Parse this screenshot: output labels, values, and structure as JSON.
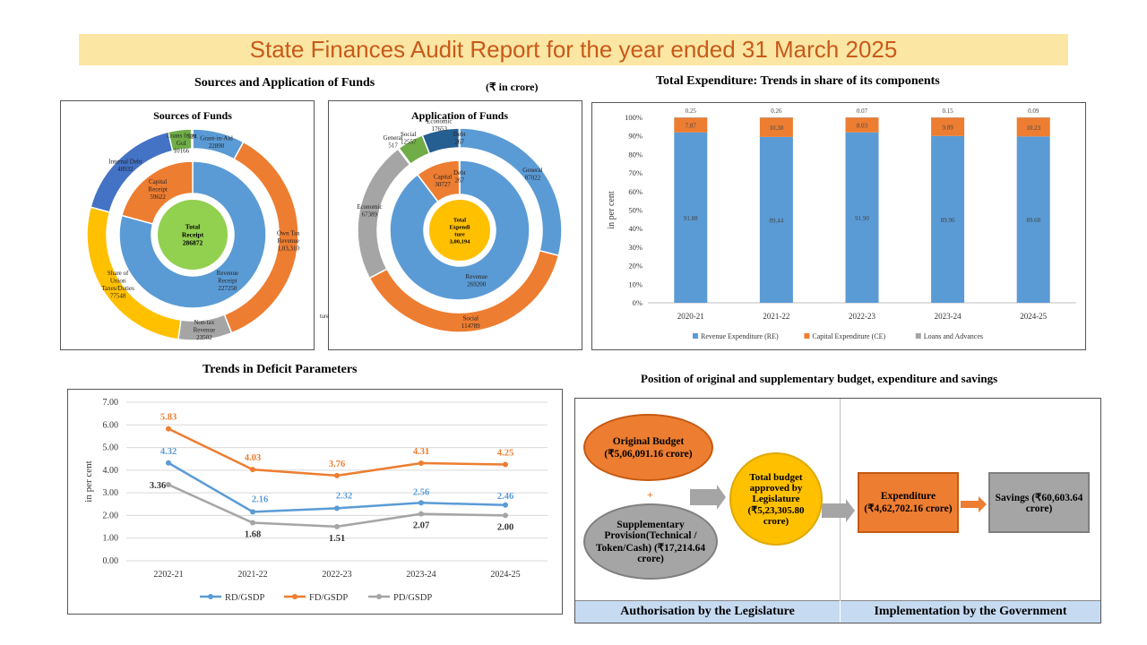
{
  "page_title": "State Finances Audit Report for the year ended 31 March 2025",
  "sources_application": {
    "title": "Sources and Application of Funds",
    "unit": "(₹ in crore)",
    "stray_label": "ture"
  },
  "colors": {
    "blue": "#5b9bd5",
    "orange": "#ed7d31",
    "gray": "#a5a5a5",
    "yellow": "#ffc000",
    "dark_blue": "#4472c4",
    "green": "#70ad47",
    "navy": "#255e91",
    "light_green": "#92d050",
    "title_bg": "#fbe6a3"
  },
  "chart_data": [
    {
      "id": "sources",
      "type": "pie",
      "title": "Sources of Funds",
      "center_label": [
        "Total",
        "Receipt",
        "286872"
      ],
      "inner_ring": [
        {
          "label": [
            "Revenue",
            "Receipt",
            "227250"
          ],
          "value": 227250,
          "color": "#5b9bd5"
        },
        {
          "label": [
            "Capital",
            "Receipt",
            "59622"
          ],
          "value": 59622,
          "color": "#ed7d31"
        }
      ],
      "outer_ring": [
        {
          "label": [
            "Grant-in-Aid",
            "22890"
          ],
          "value": 22890,
          "color": "#5b9bd5"
        },
        {
          "label": [
            "Own Tax",
            "Revenue",
            "1,03,310"
          ],
          "value": 103310,
          "color": "#ed7d31"
        },
        {
          "label": [
            "Non-tax",
            "Revenue",
            "23502"
          ],
          "value": 23502,
          "color": "#a5a5a5"
        },
        {
          "label": [
            "Share of",
            "Union",
            "Taxes/Duties",
            "77548"
          ],
          "value": 77548,
          "color": "#ffc000"
        },
        {
          "label": [
            "Internal Debt",
            "48932"
          ],
          "value": 48932,
          "color": "#4472c4"
        },
        {
          "label": [
            "Loans from",
            "GoI",
            "10166"
          ],
          "value": 10166,
          "color": "#70ad47"
        },
        {
          "label": [
            "524"
          ],
          "value": 524,
          "color": "#255e91"
        }
      ]
    },
    {
      "id": "application",
      "type": "pie",
      "title": "Application of Funds",
      "center_label": [
        "Total",
        "Expendi",
        "ture",
        "3,00,194"
      ],
      "inner_ring": [
        {
          "label": [
            "Revenue",
            "269200"
          ],
          "value": 269200,
          "color": "#5b9bd5"
        },
        {
          "label": [
            "Capital",
            "30727"
          ],
          "value": 30727,
          "color": "#ed7d31"
        },
        {
          "label": [
            "Debt",
            "267"
          ],
          "value": 267,
          "color": "#5b9bd5"
        }
      ],
      "outer_ring": [
        {
          "label": [
            "General",
            "87022"
          ],
          "value": 87022,
          "color": "#5b9bd5"
        },
        {
          "label": [
            "Social",
            "114789"
          ],
          "value": 114789,
          "color": "#ed7d31"
        },
        {
          "label": [
            "Economic",
            "67389"
          ],
          "value": 67389,
          "color": "#a5a5a5"
        },
        {
          "label": [
            "General",
            "517"
          ],
          "value": 517,
          "color": "#ffc000"
        },
        {
          "label": [
            "Social",
            "12557"
          ],
          "value": 12557,
          "color": "#70ad47"
        },
        {
          "label": [
            "Economic",
            "17653"
          ],
          "value": 17653,
          "color": "#255e91"
        },
        {
          "label": [
            "Debt",
            "267"
          ],
          "value": 267,
          "color": "#5b9bd5"
        }
      ]
    },
    {
      "id": "expenditure",
      "type": "bar",
      "stacked": true,
      "title": "Total Expenditure: Trends in share of its components",
      "ylabel": "in per cent",
      "ylim": [
        0,
        100
      ],
      "yticks": [
        "0%",
        "10%",
        "20%",
        "30%",
        "40%",
        "50%",
        "60%",
        "70%",
        "80%",
        "90%",
        "100%"
      ],
      "categories": [
        "2020-21",
        "2021-22",
        "2022-23",
        "2023-24",
        "2024-25"
      ],
      "series": [
        {
          "name": "Revenue Expenditure (RE)",
          "values": [
            91.88,
            89.44,
            91.9,
            89.96,
            89.68
          ],
          "labels": [
            "91.88",
            "89.44",
            "91.90",
            "89.96",
            "89.68"
          ],
          "color": "#5b9bd5"
        },
        {
          "name": "Capital Expenditure (CE)",
          "values": [
            7.87,
            10.3,
            8.03,
            9.89,
            10.23
          ],
          "labels": [
            "7.87",
            "10.30",
            "8.03",
            "9.89",
            "10.23"
          ],
          "color": "#ed7d31"
        },
        {
          "name": "Loans and Advances",
          "values": [
            0.25,
            0.26,
            0.07,
            0.15,
            0.09
          ],
          "labels": [
            "0.25",
            "0.26",
            "0.07",
            "0.15",
            "0.09"
          ],
          "color": "#a5a5a5"
        }
      ],
      "legend": "bottom"
    },
    {
      "id": "deficit",
      "type": "line",
      "title": "Trends in Deficit Parameters",
      "ylabel": "in per cent",
      "ylim": [
        0,
        7
      ],
      "yticks": [
        "0.00",
        "1.00",
        "2.00",
        "3.00",
        "4.00",
        "5.00",
        "6.00",
        "7.00"
      ],
      "categories": [
        "2202-21",
        "2021-22",
        "2022-23",
        "2023-24",
        "2024-25"
      ],
      "series": [
        {
          "name": "RD/GSDP",
          "values": [
            4.32,
            2.16,
            2.32,
            2.56,
            2.46
          ],
          "labels": [
            "4.32",
            "2.16",
            "2.32",
            "2.56",
            "2.46"
          ],
          "color": "#5b9bd5"
        },
        {
          "name": "FD/GSDP",
          "values": [
            5.83,
            4.03,
            3.76,
            4.31,
            4.25
          ],
          "labels": [
            "5.83",
            "4.03",
            "3.76",
            "4.31",
            "4.25"
          ],
          "color": "#ed7d31"
        },
        {
          "name": "PD/GSDP",
          "values": [
            3.36,
            1.68,
            1.51,
            2.07,
            2.0
          ],
          "labels": [
            "3.36",
            "1.68",
            "1.51",
            "2.07",
            "2.00"
          ],
          "color": "#a5a5a5"
        }
      ],
      "grid": true,
      "legend": "bottom"
    }
  ],
  "budget": {
    "title": "Position of original and supplementary budget, expenditure and savings",
    "original": "Original Budget (₹5,06,091.16 crore)",
    "plus": "+",
    "supplementary": "Supplementary Provision(Technical / Token/Cash) (₹17,214.64 crore)",
    "total": "Total budget approved by Legislature (₹5,23,305.80 crore)",
    "expenditure": "Expenditure (₹4,62,702.16 crore)",
    "savings": "Savings (₹60,603.64 crore)",
    "footer_left": "Authorisation by the Legislature",
    "footer_right": "Implementation by the Government"
  }
}
